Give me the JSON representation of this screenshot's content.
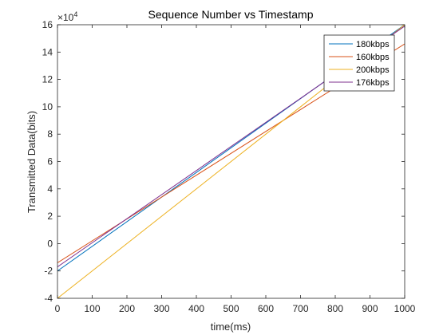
{
  "chart_data": {
    "type": "line",
    "title": "Sequence Number vs Timestamp",
    "xlabel": "time(ms)",
    "ylabel": "Transmitted Data(bits)",
    "y_exponent_label": "×10",
    "y_exponent_power": "4",
    "xlim": [
      0,
      1000
    ],
    "ylim": [
      -4,
      16
    ],
    "y_scale_note": "values shown in units of 10^4 bits",
    "x_ticks": [
      0,
      100,
      200,
      300,
      400,
      500,
      600,
      700,
      800,
      900,
      1000
    ],
    "y_ticks": [
      -4,
      -2,
      0,
      2,
      4,
      6,
      8,
      10,
      12,
      14,
      16
    ],
    "grid": false,
    "legend_position": "top-right",
    "series": [
      {
        "name": "180kbps",
        "color": "#0072BD",
        "x": [
          0,
          1000
        ],
        "y": [
          -2.0,
          16.0
        ]
      },
      {
        "name": "160kbps",
        "color": "#D95319",
        "x": [
          0,
          1000
        ],
        "y": [
          -1.4,
          14.6
        ]
      },
      {
        "name": "200kbps",
        "color": "#EDB120",
        "x": [
          0,
          1000
        ],
        "y": [
          -4.0,
          16.0
        ]
      },
      {
        "name": "176kbps",
        "color": "#7E2F8E",
        "x": [
          0,
          1000
        ],
        "y": [
          -1.7,
          15.9
        ]
      }
    ]
  }
}
